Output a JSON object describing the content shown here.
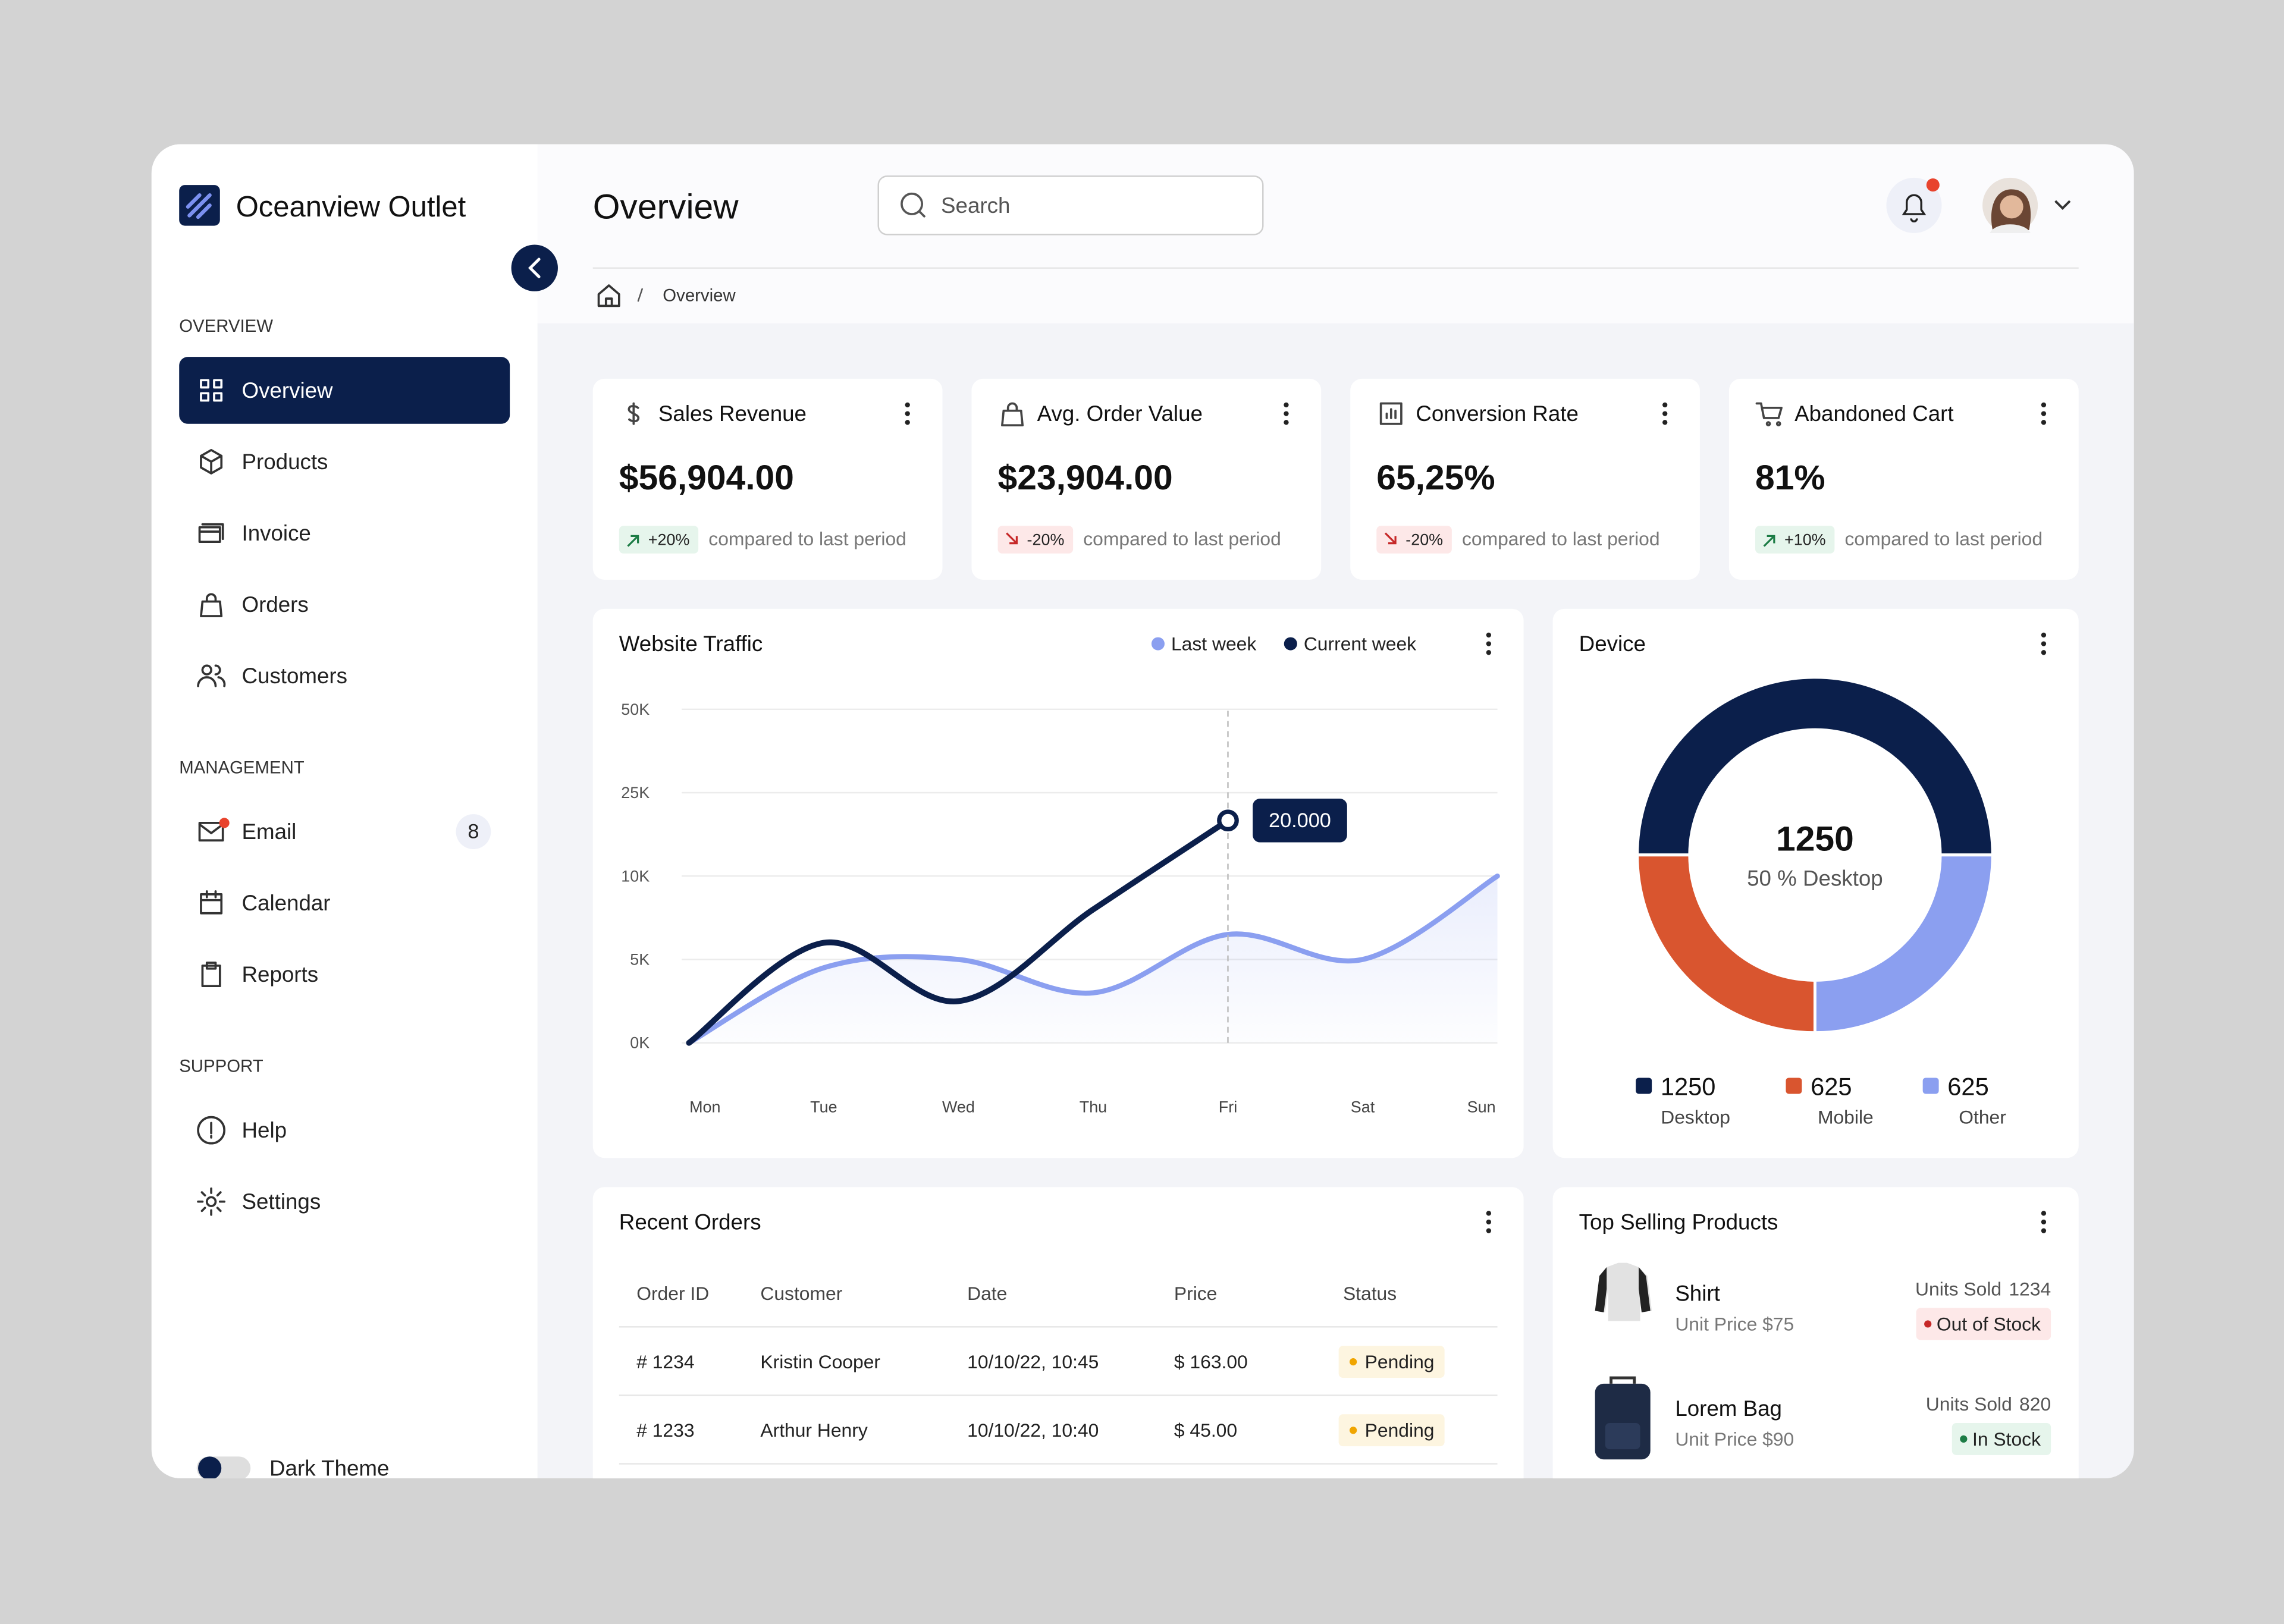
{
  "brand": "Oceanview Outlet",
  "sidebar": {
    "sections": [
      {
        "title": "OVERVIEW",
        "items": [
          {
            "label": "Overview",
            "active": true
          },
          {
            "label": "Products"
          },
          {
            "label": "Invoice"
          },
          {
            "label": "Orders"
          },
          {
            "label": "Customers"
          }
        ]
      },
      {
        "title": "MANAGEMENT",
        "items": [
          {
            "label": "Email",
            "badge": 8,
            "unread": true
          },
          {
            "label": "Calendar"
          },
          {
            "label": "Reports"
          }
        ]
      },
      {
        "title": "SUPPORT",
        "items": [
          {
            "label": "Help"
          },
          {
            "label": "Settings"
          }
        ]
      }
    ],
    "theme_toggle": "Dark Theme"
  },
  "header": {
    "title": "Overview",
    "search_placeholder": "Search",
    "breadcrumb": "Overview",
    "notifications": true
  },
  "kpis": [
    {
      "title": "Sales Revenue",
      "value": "$56,904.00",
      "change": "+20%",
      "trend": "up",
      "note": "compared to last period"
    },
    {
      "title": "Avg. Order Value",
      "value": "$23,904.00",
      "change": "-20%",
      "trend": "down",
      "note": "compared to last period"
    },
    {
      "title": "Conversion Rate",
      "value": "65,25%",
      "change": "-20%",
      "trend": "down",
      "note": "compared to last period"
    },
    {
      "title": "Abandoned Cart",
      "value": "81%",
      "change": "+10%",
      "trend": "up",
      "note": "compared to last period"
    }
  ],
  "chart_data": [
    {
      "type": "line",
      "title": "Website Traffic",
      "categories": [
        "Mon",
        "Tue",
        "Wed",
        "Thu",
        "Fri",
        "Sat",
        "Sun"
      ],
      "series": [
        {
          "name": "Last week",
          "color": "#8b9ff0",
          "values": [
            0,
            4500,
            5000,
            3000,
            6500,
            5000,
            10000
          ]
        },
        {
          "name": "Current week",
          "color": "#0b1f4b",
          "values": [
            0,
            6000,
            2500,
            8000,
            20000,
            null,
            null
          ],
          "value_labels": [
            null,
            null,
            null,
            null,
            "20.000",
            null,
            null
          ]
        }
      ],
      "ylim": [
        0,
        50000
      ],
      "yticks": [
        {
          "value": 0,
          "label": "0K"
        },
        {
          "value": 5000,
          "label": "5K"
        },
        {
          "value": 10000,
          "label": "10K"
        },
        {
          "value": 25000,
          "label": "25K"
        },
        {
          "value": 50000,
          "label": "50K"
        }
      ],
      "grid": true,
      "legend": "top-right"
    },
    {
      "type": "donut",
      "title": "Device",
      "categories": [
        "Desktop",
        "Mobile",
        "Other"
      ],
      "values": [
        1250,
        625,
        625
      ],
      "colors": [
        "#0b1f4b",
        "#d9552f",
        "#8b9ff0"
      ],
      "center_label": "50 % Desktop"
    }
  ],
  "recent_orders": {
    "title": "Recent Orders",
    "columns": [
      "Order ID",
      "Customer",
      "Date",
      "Price",
      "Status"
    ],
    "rows": [
      [
        "# 1234",
        "Kristin Cooper",
        "10/10/22, 10:45",
        "$ 163.00",
        "Pending"
      ],
      [
        "# 1233",
        "Arthur Henry",
        "10/10/22, 10:40",
        "$ 45.00",
        "Pending"
      ]
    ]
  },
  "top_products": {
    "title": "Top Selling Products",
    "items": [
      {
        "name": "Shirt",
        "unit_price": "Unit Price $75",
        "units_sold": "Units Sold",
        "units": 1234,
        "status": "Out of Stock",
        "in_stock": false
      },
      {
        "name": "Lorem Bag",
        "unit_price": "Unit Price $90",
        "units_sold": "Units Sold",
        "units": 820,
        "status": "In Stock",
        "in_stock": true
      }
    ]
  }
}
